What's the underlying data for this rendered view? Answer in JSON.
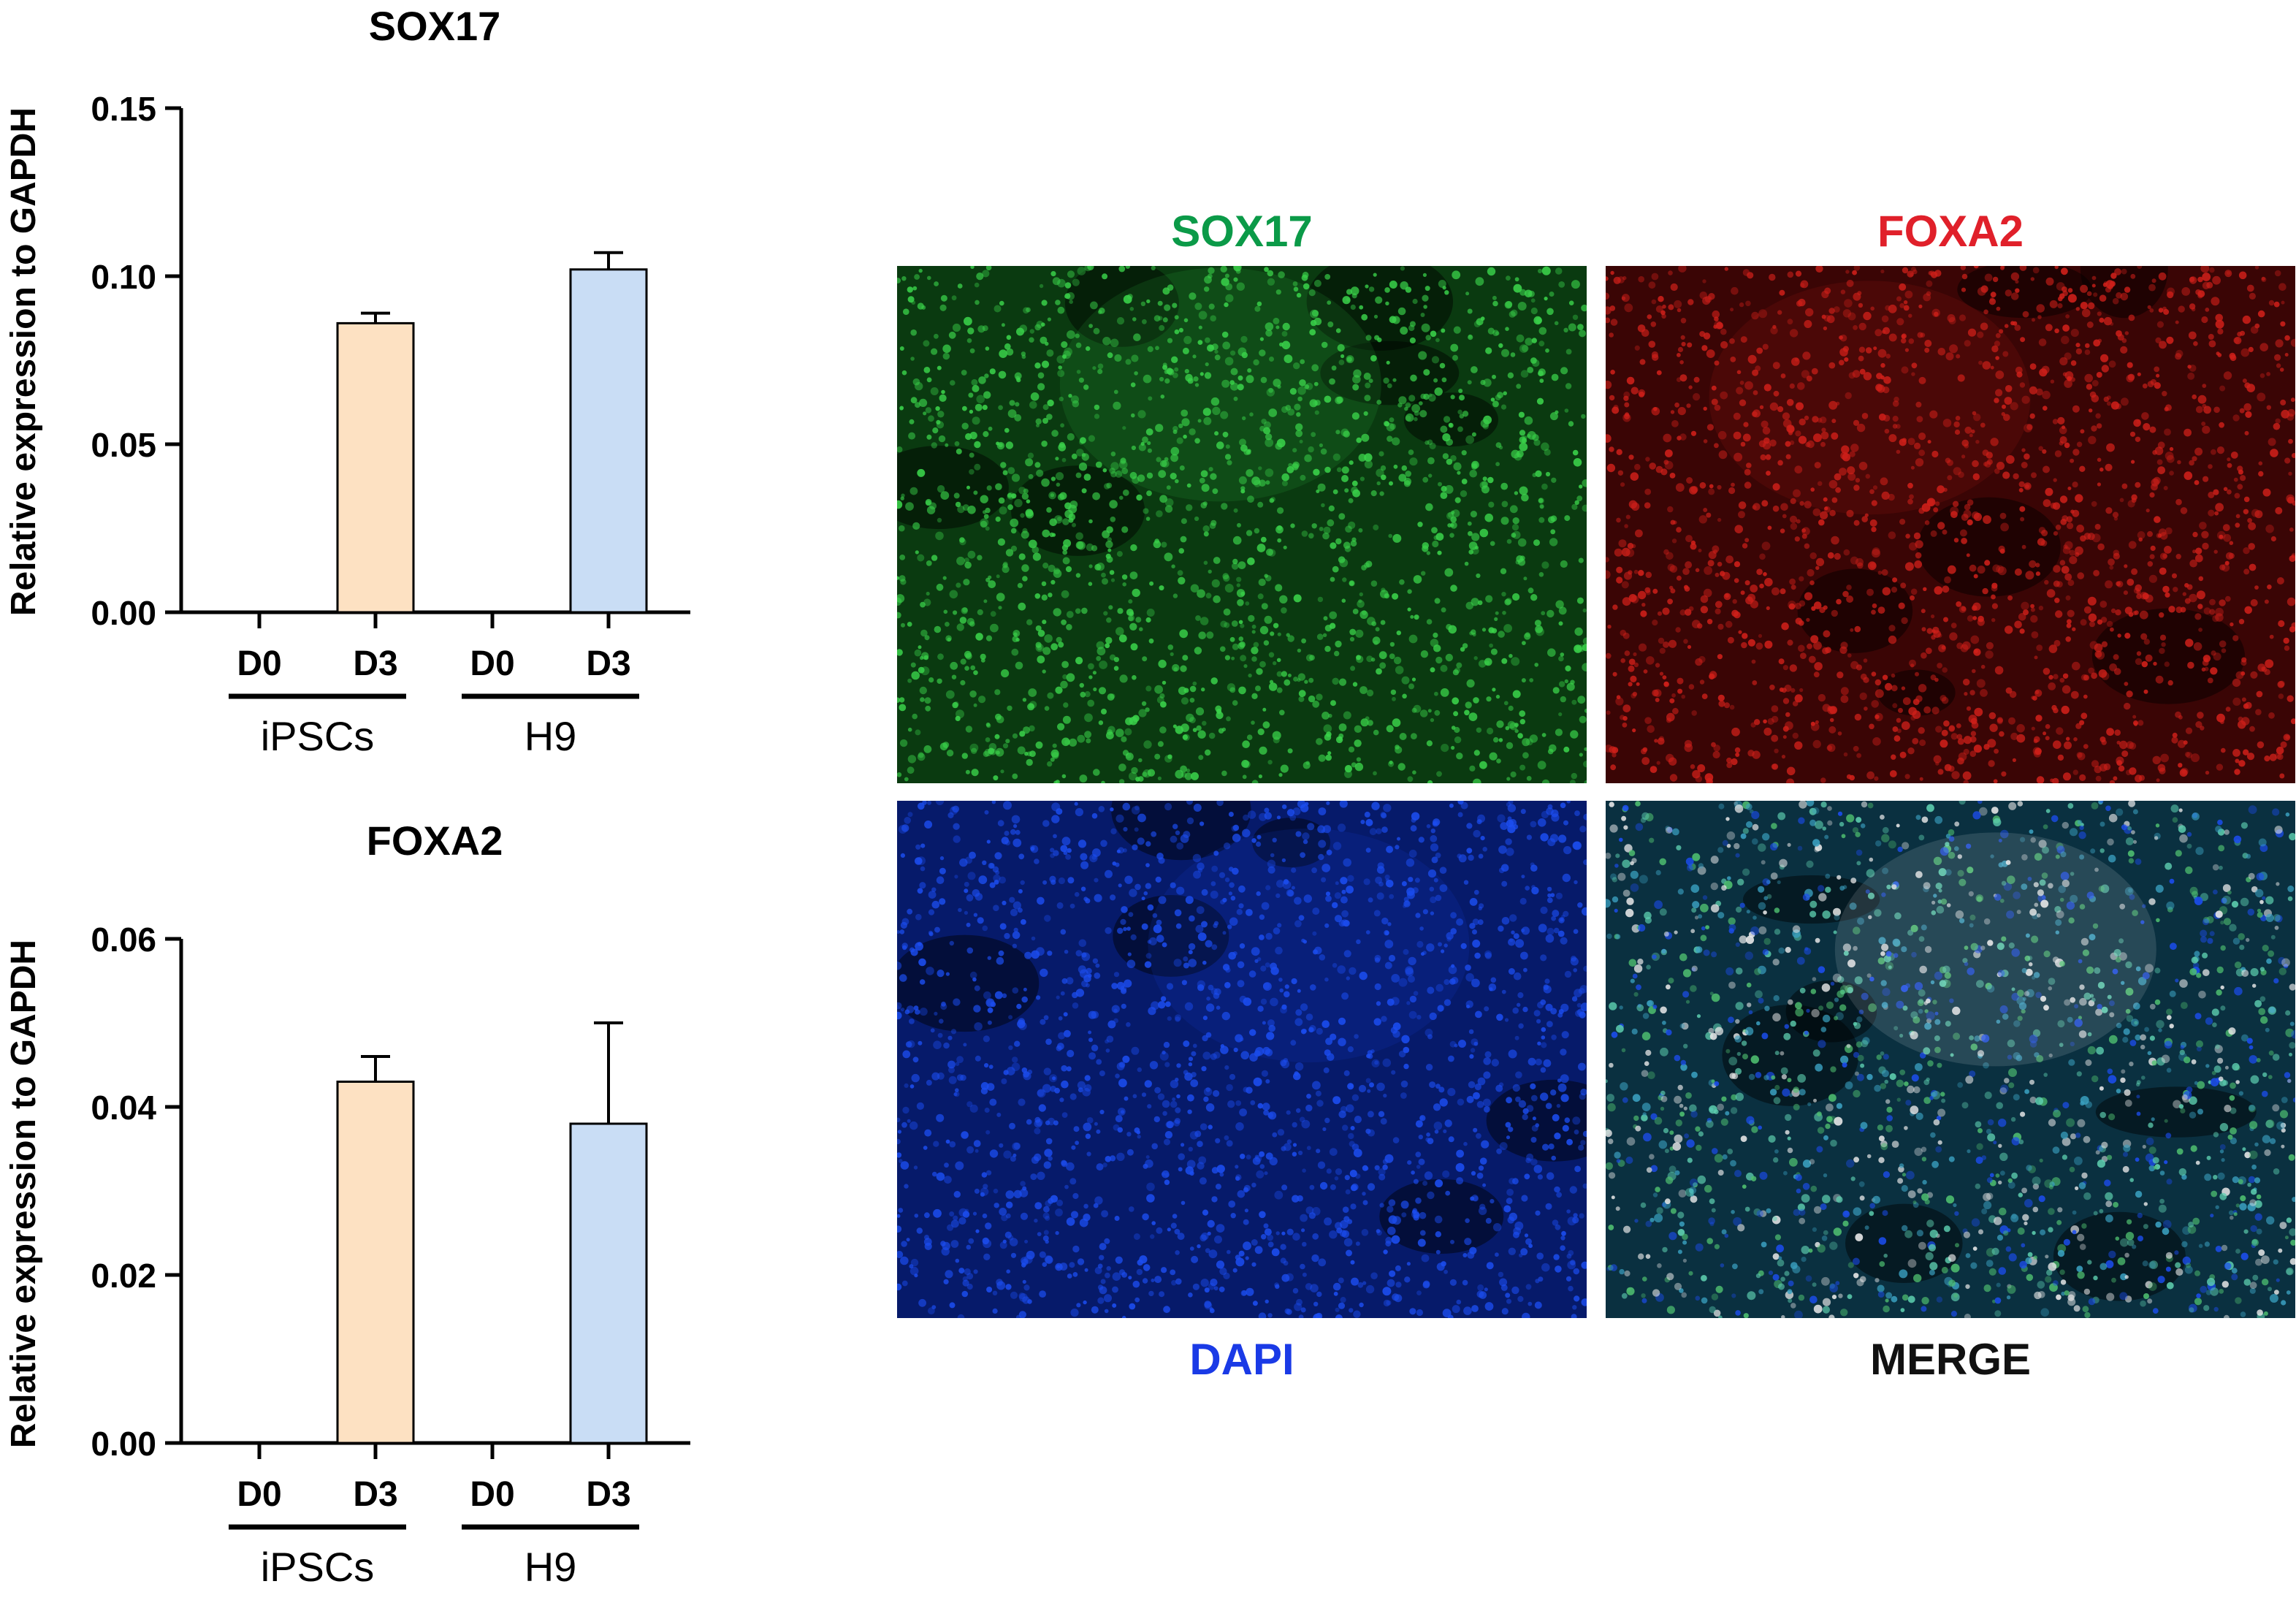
{
  "chart_data": [
    {
      "type": "bar",
      "title": "SOX17",
      "ylabel": "Relative expression to GAPDH",
      "xlabel": "",
      "ylim": [
        0,
        0.15
      ],
      "yticks": [
        "0.00",
        "0.05",
        "0.10",
        "0.15"
      ],
      "ytick_values": [
        0,
        0.05,
        0.1,
        0.15
      ],
      "categories": [
        "D0",
        "D3",
        "D0",
        "D3"
      ],
      "groups": [
        {
          "label": "iPSCs",
          "categories": [
            0,
            1
          ]
        },
        {
          "label": "H9",
          "categories": [
            2,
            3
          ]
        }
      ],
      "values": [
        0,
        0.086,
        0,
        0.102
      ],
      "errors": [
        0,
        0.003,
        0,
        0.005
      ],
      "bar_colors": [
        "#fde1c2",
        "#fde1c2",
        "#c9ddf5",
        "#c9ddf5"
      ]
    },
    {
      "type": "bar",
      "title": "FOXA2",
      "ylabel": "Relative expression to GAPDH",
      "xlabel": "",
      "ylim": [
        0,
        0.06
      ],
      "yticks": [
        "0.00",
        "0.02",
        "0.04",
        "0.06"
      ],
      "ytick_values": [
        0,
        0.02,
        0.04,
        0.06
      ],
      "categories": [
        "D0",
        "D3",
        "D0",
        "D3"
      ],
      "groups": [
        {
          "label": "iPSCs",
          "categories": [
            0,
            1
          ]
        },
        {
          "label": "H9",
          "categories": [
            2,
            3
          ]
        }
      ],
      "values": [
        0,
        0.043,
        0,
        0.038
      ],
      "errors": [
        0,
        0.003,
        0,
        0.012
      ],
      "bar_colors": [
        "#fde1c2",
        "#fde1c2",
        "#c9ddf5",
        "#c9ddf5"
      ]
    }
  ],
  "microscopy": {
    "panels": [
      {
        "label": "SOX17",
        "channel": "green",
        "label_color": "#0b9a48",
        "base": "#0a3a10",
        "dot": "#3ad24a",
        "label_position": "top"
      },
      {
        "label": "FOXA2",
        "channel": "red",
        "label_color": "#e0202a",
        "base": "#3a0505",
        "dot": "#d0201a",
        "label_position": "top"
      },
      {
        "label": "DAPI",
        "channel": "blue",
        "label_color": "#1a3ae6",
        "base": "#061a6a",
        "dot": "#1c4df0",
        "label_position": "bottom"
      },
      {
        "label": "MERGE",
        "channel": "merge",
        "label_color": "#111111",
        "base": "#0a3040",
        "dot": "#4fc0a8",
        "label_position": "bottom"
      }
    ]
  }
}
